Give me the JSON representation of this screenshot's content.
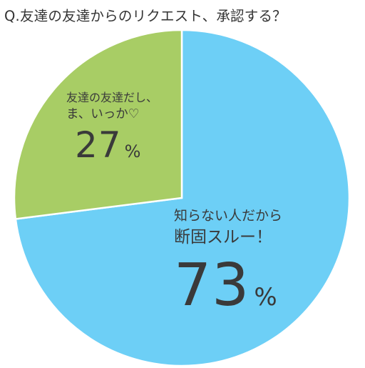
{
  "title": "Q.友達の友達からのリクエスト、承認する？",
  "chart_data": {
    "type": "pie",
    "title": "Q.友達の友達からのリクエスト、承認する？",
    "series": [
      {
        "line1": "知らない人だから",
        "line2": "断固スルー！",
        "value": 73,
        "unit": "%",
        "color": "#6dcff6"
      },
      {
        "line1": "友達の友達だし、",
        "line2": "ま、いっか♡",
        "value": 27,
        "unit": "%",
        "color": "#a8cd65"
      }
    ],
    "start": "12 o'clock",
    "direction": "clockwise",
    "stroke": "#ffffff"
  }
}
